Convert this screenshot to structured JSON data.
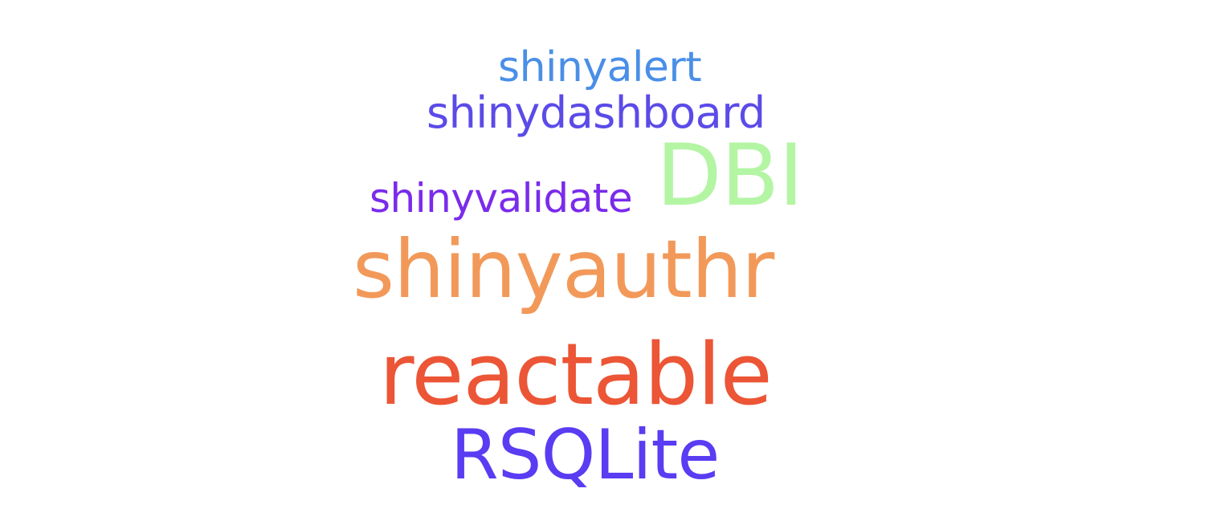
{
  "word_cloud": {
    "words": [
      {
        "id": "shinyalert",
        "text": "shinyalert",
        "color": "#4A8FE7"
      },
      {
        "id": "shinydashboard",
        "text": "shinydashboard",
        "color": "#5B4BE8"
      },
      {
        "id": "dbi",
        "text": "DBI",
        "color": "#B4F5A4"
      },
      {
        "id": "shinyvalidate",
        "text": "shinyvalidate",
        "color": "#7A2BEB"
      },
      {
        "id": "shinyauthr",
        "text": "shinyauthr",
        "color": "#F2995A"
      },
      {
        "id": "reactable",
        "text": "reactable",
        "color": "#EC5535"
      },
      {
        "id": "rsqlite",
        "text": "RSQLite",
        "color": "#5A3CF2"
      }
    ]
  }
}
